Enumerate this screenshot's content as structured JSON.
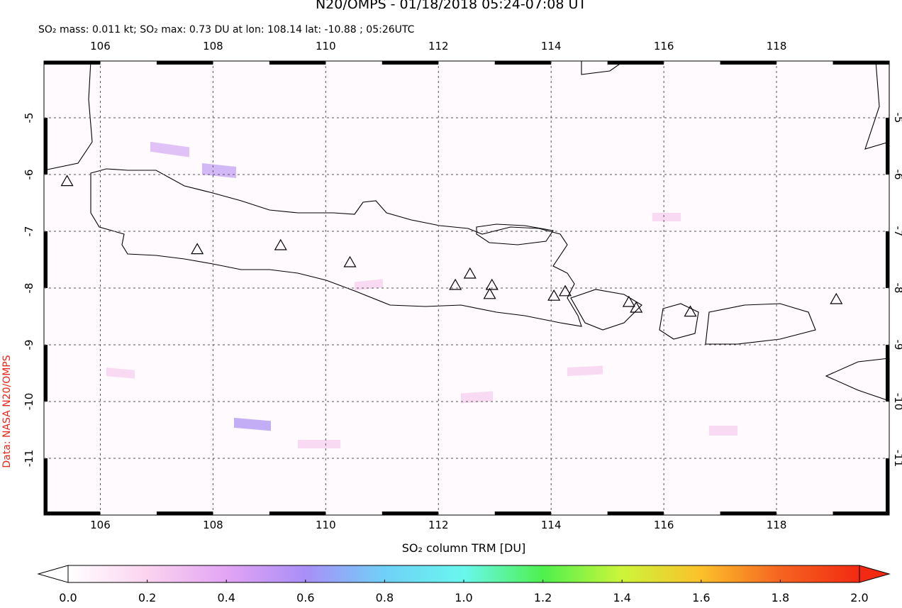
{
  "chart_data": {
    "type": "map",
    "title": "N20/OMPS - 01/18/2018 05:24-07:08 UT",
    "subtitle": "SO₂ mass: 0.011 kt; SO₂ max: 0.73 DU at lon: 108.14 lat: -10.88 ; 05:26UTC",
    "source": "Data: NASA N20/OMPS",
    "xlim": [
      105,
      120
    ],
    "ylim": [
      -12,
      -4
    ],
    "xticks": [
      106,
      108,
      110,
      112,
      114,
      116,
      118
    ],
    "yticks": [
      -5,
      -6,
      -7,
      -8,
      -9,
      -10,
      -11
    ],
    "grid": true,
    "volcanoes": {
      "color": "#000000",
      "lon": [
        105.41,
        107.72,
        109.2,
        110.43,
        112.3,
        112.56,
        112.95,
        112.91,
        114.05,
        114.25,
        115.38,
        115.51,
        116.47,
        119.06
      ],
      "lat": [
        -6.12,
        -7.32,
        -7.25,
        -7.55,
        -7.95,
        -7.75,
        -7.95,
        -8.11,
        -8.14,
        -8.06,
        -8.25,
        -8.35,
        -8.42,
        -8.2
      ]
    },
    "colorbar": {
      "label": "SO₂ column TRM [DU]",
      "lim": [
        0,
        2
      ],
      "colors": [
        "#ffffff",
        "#fbd3ef",
        "#e3a4f4",
        "#a98ef7",
        "#6fd0f7",
        "#69f7ee",
        "#4ef04e",
        "#cdf53a",
        "#fbc02a",
        "#f56420",
        "#f22a12"
      ],
      "ticks": [
        {
          "value": 0,
          "label": "0.0"
        },
        {
          "value": 0.2,
          "label": "0.2"
        },
        {
          "value": 0.4,
          "label": "0.4"
        },
        {
          "value": 0.6,
          "label": "0.6"
        },
        {
          "value": 0.8,
          "label": "0.8"
        },
        {
          "value": 1,
          "label": "1.0"
        },
        {
          "value": 1.2,
          "label": "1.2"
        },
        {
          "value": 1.4,
          "label": "1.4"
        },
        {
          "value": 1.6,
          "label": "1.6"
        },
        {
          "value": 1.8,
          "label": "1.8"
        },
        {
          "value": 2,
          "label": "2.0"
        }
      ]
    }
  }
}
